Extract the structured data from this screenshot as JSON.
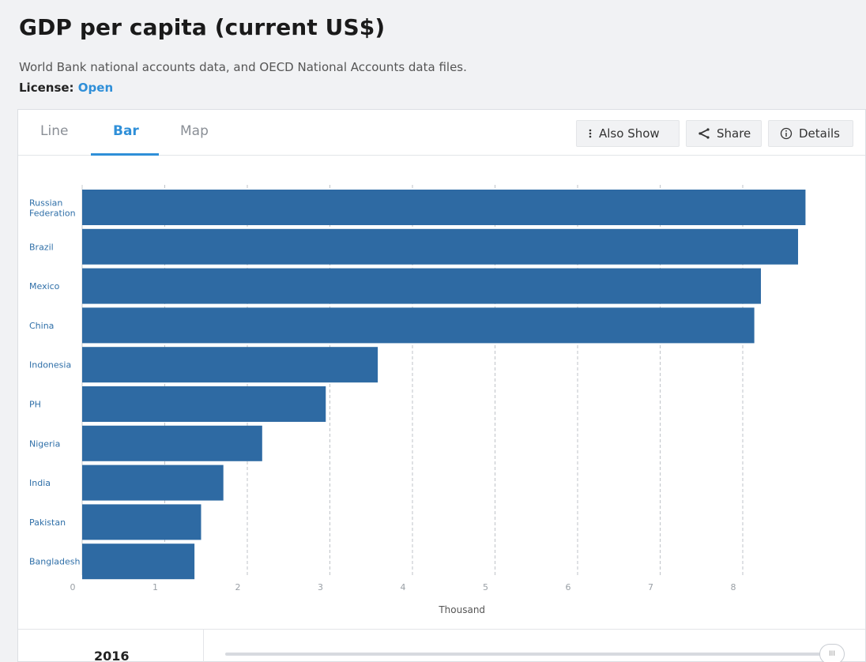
{
  "header": {
    "title": "GDP per capita (current US$)",
    "source": "World Bank national accounts data, and OECD National Accounts data files.",
    "license_label": "License:",
    "license_value": "Open"
  },
  "tabs": [
    {
      "label": "Line"
    },
    {
      "label": "Bar"
    },
    {
      "label": "Map"
    }
  ],
  "toolbar": {
    "also_show_label": "Also Show",
    "share_label": "Share",
    "details_label": "Details",
    "also_show_icon": "more-vertical-icon",
    "share_icon": "share-icon",
    "details_icon": "info-icon"
  },
  "footer": {
    "year": "2016",
    "slider_handle_glyph": "III"
  },
  "chart_data": {
    "type": "bar",
    "orientation": "horizontal",
    "categories": [
      "Russian Federation",
      "Brazil",
      "Mexico",
      "China",
      "Indonesia",
      "PH",
      "Nigeria",
      "India",
      "Pakistan",
      "Bangladesh"
    ],
    "values": [
      8.76,
      8.67,
      8.22,
      8.14,
      3.58,
      2.95,
      2.18,
      1.71,
      1.44,
      1.36
    ],
    "x_ticks": [
      "0",
      "1",
      "2",
      "3",
      "4",
      "5",
      "6",
      "7",
      "8"
    ],
    "xlim": [
      0,
      8.8
    ],
    "xlabel": "Thousand",
    "grid": "vertical-dashed",
    "bar_color": "#2e6aa3",
    "label_color": "#2f6fa8"
  }
}
